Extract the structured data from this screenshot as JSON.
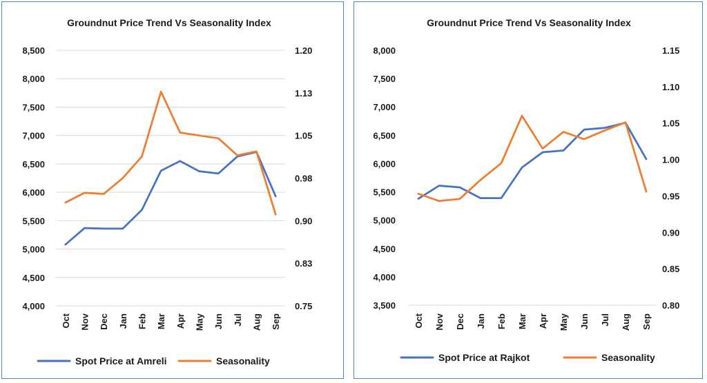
{
  "chart_data": [
    {
      "type": "line",
      "title": "Groundnut Price Trend Vs Seasonality Index",
      "categories": [
        "Oct",
        "Nov",
        "Dec",
        "Jan",
        "Feb",
        "Mar",
        "Apr",
        "May",
        "Jun",
        "Jul",
        "Aug",
        "Sep"
      ],
      "y_left": {
        "min": 4000,
        "max": 8500,
        "ticks": [
          "4,000",
          "4,500",
          "5,000",
          "5,500",
          "6,000",
          "6,500",
          "7,000",
          "7,500",
          "8,000",
          "8,500"
        ]
      },
      "y_right": {
        "min": 0.75,
        "max": 1.2,
        "ticks": [
          "0.75",
          "0.83",
          "0.90",
          "0.98",
          "1.05",
          "1.13",
          "1.20"
        ]
      },
      "grid": true,
      "legend_position": "bottom",
      "series": [
        {
          "name": "Spot Price at Amreli",
          "axis": "left",
          "color": "#4472c4",
          "values": [
            5080,
            5370,
            5360,
            5360,
            5690,
            6380,
            6550,
            6370,
            6330,
            6630,
            6710,
            5930
          ]
        },
        {
          "name": "Seasonality",
          "axis": "right",
          "color": "#ed7d31",
          "values": [
            0.932,
            0.949,
            0.947,
            0.975,
            1.013,
            1.127,
            1.055,
            1.05,
            1.045,
            1.015,
            1.022,
            0.911
          ]
        }
      ]
    },
    {
      "type": "line",
      "title": "Groundnut Price Trend  Vs Seasonality Index",
      "categories": [
        "Oct",
        "Nov",
        "Dec",
        "Jan",
        "Feb",
        "Mar",
        "Apr",
        "May",
        "Jun",
        "Jul",
        "Aug",
        "Sep"
      ],
      "y_left": {
        "min": 3500,
        "max": 8000,
        "ticks": [
          "3,500",
          "4,000",
          "4,500",
          "5,000",
          "5,500",
          "6,000",
          "6,500",
          "7,000",
          "7,500",
          "8,000"
        ]
      },
      "y_right": {
        "min": 0.8,
        "max": 1.15,
        "ticks": [
          "0.80",
          "0.85",
          "0.90",
          "0.95",
          "1.00",
          "1.05",
          "1.10",
          "1.15"
        ]
      },
      "grid": false,
      "legend_position": "bottom",
      "series": [
        {
          "name": "Spot Price at Rajkot",
          "axis": "left",
          "color": "#4472c4",
          "values": [
            5380,
            5610,
            5580,
            5390,
            5390,
            5930,
            6200,
            6230,
            6600,
            6630,
            6720,
            6080
          ]
        },
        {
          "name": "Seasonality",
          "axis": "right",
          "color": "#ed7d31",
          "values": [
            0.953,
            0.943,
            0.946,
            0.972,
            0.995,
            1.06,
            1.015,
            1.038,
            1.028,
            1.04,
            1.051,
            0.956
          ]
        }
      ]
    }
  ]
}
